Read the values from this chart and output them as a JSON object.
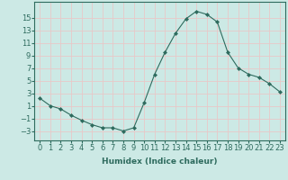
{
  "x": [
    0,
    1,
    2,
    3,
    4,
    5,
    6,
    7,
    8,
    9,
    10,
    11,
    12,
    13,
    14,
    15,
    16,
    17,
    18,
    19,
    20,
    21,
    22,
    23
  ],
  "y": [
    2.2,
    1.0,
    0.5,
    -0.5,
    -1.3,
    -2.0,
    -2.5,
    -2.5,
    -3.0,
    -2.5,
    1.5,
    6.0,
    9.5,
    12.5,
    14.8,
    16.0,
    15.5,
    14.3,
    9.5,
    7.0,
    6.0,
    5.5,
    4.5,
    3.2
  ],
  "line_color": "#2e6b5e",
  "marker": "D",
  "markersize": 2.0,
  "linewidth": 0.8,
  "bg_color": "#cce9e5",
  "grid_color": "#e8c8c8",
  "xlabel": "Humidex (Indice chaleur)",
  "ylim": [
    -4.5,
    17.5
  ],
  "xlim": [
    -0.5,
    23.5
  ],
  "yticks": [
    -3,
    -1,
    1,
    3,
    5,
    7,
    9,
    11,
    13,
    15
  ],
  "xtick_labels": [
    "0",
    "1",
    "2",
    "3",
    "4",
    "5",
    "6",
    "7",
    "8",
    "9",
    "10",
    "11",
    "12",
    "13",
    "14",
    "15",
    "16",
    "17",
    "18",
    "19",
    "20",
    "21",
    "22",
    "23"
  ],
  "label_fontsize": 6.5,
  "tick_fontsize": 6.0
}
